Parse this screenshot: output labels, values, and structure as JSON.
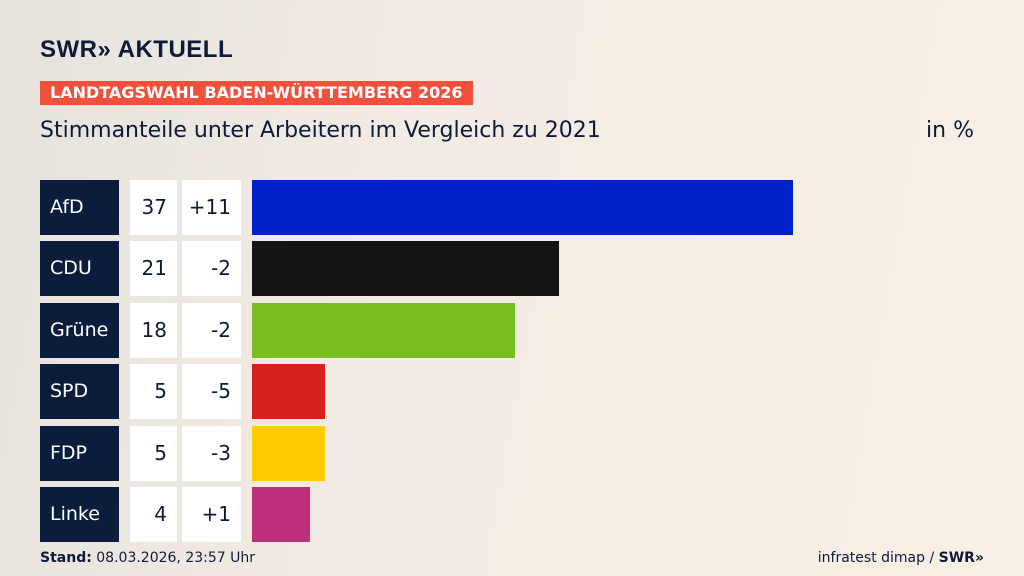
{
  "brand": "SWR» AKTUELL",
  "kicker": "LANDTAGSWAHL BADEN-WÜRTTEMBERG 2026",
  "chart_data": {
    "type": "bar",
    "title": "Stimmanteile unter Arbeitern im Vergleich zu 2021",
    "unit": "in %",
    "categories": [
      "AfD",
      "CDU",
      "Grüne",
      "SPD",
      "FDP",
      "Linke"
    ],
    "values": [
      37,
      21,
      18,
      5,
      5,
      4
    ],
    "changes": [
      "+11",
      "-2",
      "-2",
      "-5",
      "-3",
      "+1"
    ],
    "colors": [
      "#0021c7",
      "#141414",
      "#78be1e",
      "#d7201e",
      "#ffcc00",
      "#c0307a"
    ],
    "xlim": [
      0,
      37
    ]
  },
  "footer": {
    "stand_label": "Stand:",
    "stand_value": "08.03.2026, 23:57 Uhr",
    "source": "infratest dimap / ",
    "source_brand": "SWR»"
  }
}
